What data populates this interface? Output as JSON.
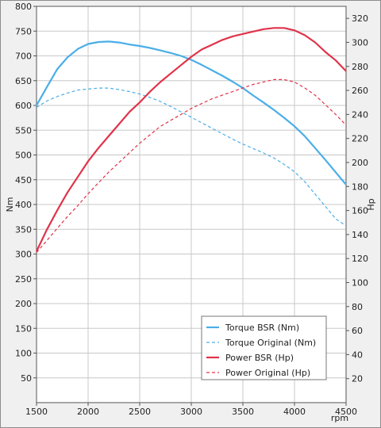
{
  "chart_data": {
    "type": "line",
    "title": "",
    "xlabel": "rpm",
    "ylabel_left": "Nm",
    "ylabel_right": "Hp",
    "xlim": [
      1500,
      4500
    ],
    "ylim_left": [
      0,
      800
    ],
    "ylim_right": [
      0,
      330
    ],
    "x_ticks": [
      1500,
      2000,
      2500,
      3000,
      3500,
      4000,
      4500
    ],
    "y_ticks_left": [
      50,
      100,
      150,
      200,
      250,
      300,
      350,
      400,
      450,
      500,
      550,
      600,
      650,
      700,
      750,
      800
    ],
    "y_ticks_right": [
      20,
      40,
      60,
      80,
      100,
      120,
      140,
      160,
      180,
      200,
      220,
      240,
      260,
      280,
      300,
      320
    ],
    "grid": true,
    "legend_position": "bottom-right",
    "series": [
      {
        "name": "Torque BSR (Nm)",
        "axis": "left",
        "color": "#4aaee8",
        "style": "solid",
        "x": [
          1500,
          1600,
          1700,
          1800,
          1900,
          2000,
          2100,
          2200,
          2300,
          2400,
          2500,
          2600,
          2700,
          2800,
          2900,
          3000,
          3100,
          3200,
          3300,
          3400,
          3500,
          3600,
          3700,
          3800,
          3900,
          4000,
          4100,
          4200,
          4300,
          4400,
          4500
        ],
        "y": [
          600,
          637,
          673,
          697,
          714,
          724,
          728,
          729,
          727,
          723,
          720,
          716,
          711,
          706,
          700,
          692,
          682,
          671,
          660,
          648,
          635,
          620,
          606,
          591,
          575,
          558,
          538,
          514,
          490,
          465,
          440
        ]
      },
      {
        "name": "Torque Original (Nm)",
        "axis": "left",
        "color": "#4aaee8",
        "style": "dashed",
        "x": [
          1500,
          1600,
          1700,
          1800,
          1900,
          2000,
          2100,
          2200,
          2300,
          2400,
          2500,
          2600,
          2700,
          2800,
          2900,
          3000,
          3100,
          3200,
          3300,
          3400,
          3500,
          3600,
          3700,
          3800,
          3900,
          4000,
          4100,
          4200,
          4300,
          4400,
          4500
        ],
        "y": [
          596,
          609,
          618,
          625,
          631,
          633,
          635,
          635,
          632,
          628,
          623,
          616,
          608,
          598,
          587,
          576,
          565,
          554,
          543,
          532,
          522,
          513,
          504,
          494,
          481,
          466,
          446,
          421,
          396,
          371,
          357
        ]
      },
      {
        "name": "Power BSR (Hp)",
        "axis": "right",
        "color": "#e0334a",
        "style": "solid",
        "x": [
          1500,
          1600,
          1700,
          1800,
          1900,
          2000,
          2100,
          2200,
          2300,
          2400,
          2500,
          2600,
          2700,
          2800,
          2900,
          3000,
          3100,
          3200,
          3300,
          3400,
          3500,
          3600,
          3700,
          3800,
          3900,
          4000,
          4100,
          4200,
          4300,
          4400,
          4500
        ],
        "y": [
          126,
          144,
          160,
          175,
          188,
          201,
          212,
          222,
          232,
          242,
          250,
          259,
          267,
          274,
          281,
          288,
          294,
          298,
          302,
          305,
          307,
          309,
          311,
          312,
          312,
          310,
          306,
          300,
          292,
          285,
          276
        ]
      },
      {
        "name": "Power Original (Hp)",
        "axis": "right",
        "color": "#e0334a",
        "style": "dashed",
        "x": [
          1500,
          1600,
          1700,
          1800,
          1900,
          2000,
          2100,
          2200,
          2300,
          2400,
          2500,
          2600,
          2700,
          2800,
          2900,
          3000,
          3100,
          3200,
          3300,
          3400,
          3500,
          3600,
          3700,
          3800,
          3900,
          4000,
          4100,
          4200,
          4300,
          4400,
          4500
        ],
        "y": [
          125,
          135,
          145,
          155,
          164,
          174,
          183,
          192,
          200,
          208,
          216,
          223,
          230,
          235,
          240,
          245,
          249,
          253,
          256,
          259,
          262,
          265,
          267,
          269,
          269,
          267,
          262,
          256,
          248,
          240,
          231
        ]
      }
    ]
  }
}
